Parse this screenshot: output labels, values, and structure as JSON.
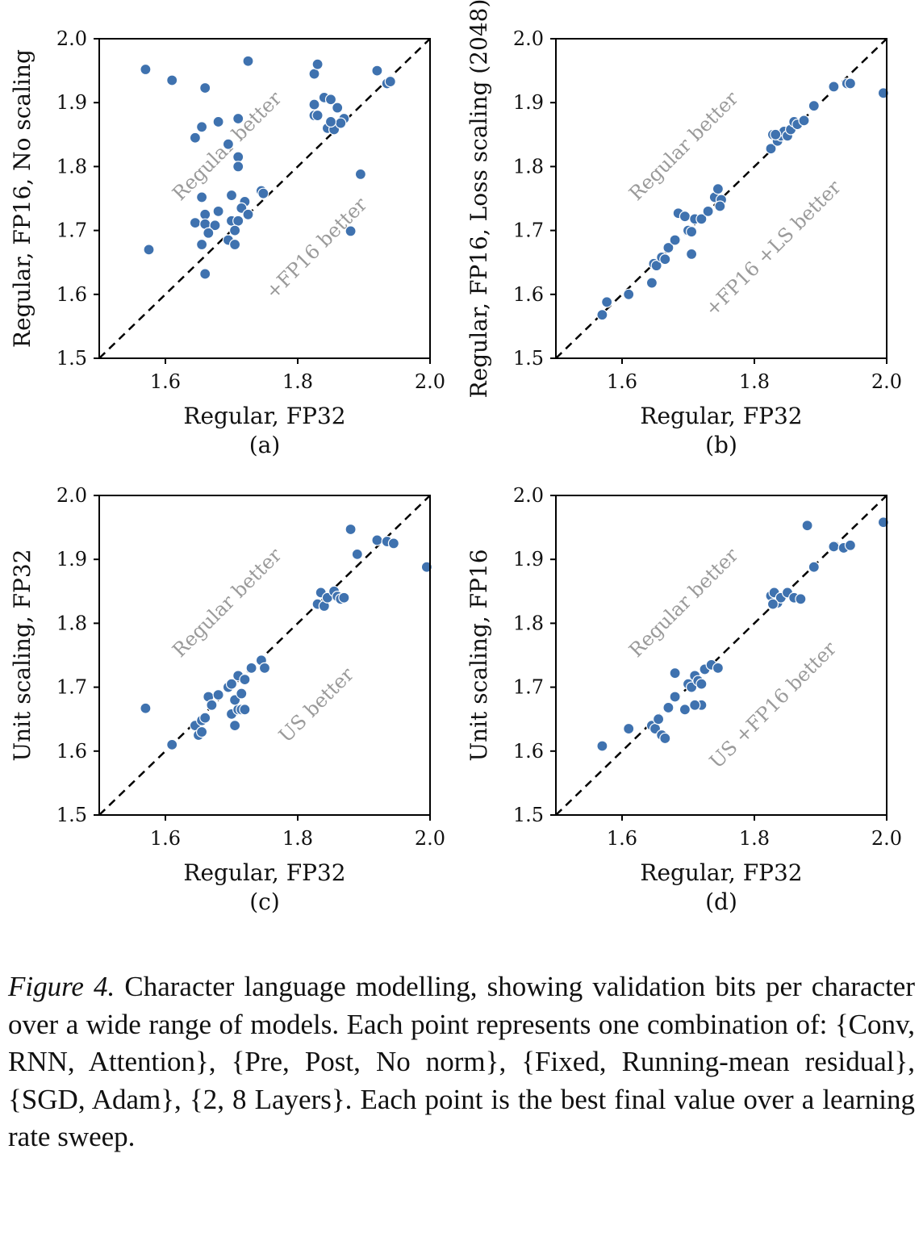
{
  "caption": {
    "label": "Figure 4.",
    "text": "Character language modelling, showing validation bits per character over a wide range of models. Each point represents one combination of: {Conv, RNN, Attention}, {Pre, Post, No norm}, {Fixed, Running-mean residual}, {SGD, Adam}, {2, 8 Layers}. Each point is the best final value over a learning rate sweep."
  },
  "style": {
    "point_color": "#3f72af",
    "point_edge": "#ffffff",
    "annotation_color": "#9a9a9a",
    "diagonal_color": "#000000"
  },
  "chart_data": [
    {
      "type": "scatter",
      "panel_label": "(a)",
      "xlabel": "Regular, FP32",
      "ylabel": "Regular, FP16, No scaling",
      "xlim": [
        1.5,
        2.0
      ],
      "ylim": [
        1.5,
        2.0
      ],
      "xticks": [
        "1.6",
        "1.8",
        "2.0"
      ],
      "yticks": [
        "1.5",
        "1.6",
        "1.7",
        "1.8",
        "1.9",
        "2.0"
      ],
      "annotations": [
        "Regular better",
        "+FP16 better"
      ],
      "reference_line": "y = x",
      "points": [
        [
          1.57,
          1.952
        ],
        [
          1.61,
          1.935
        ],
        [
          1.66,
          1.923
        ],
        [
          1.725,
          1.965
        ],
        [
          1.655,
          1.862
        ],
        [
          1.645,
          1.845
        ],
        [
          1.68,
          1.87
        ],
        [
          1.71,
          1.875
        ],
        [
          1.695,
          1.835
        ],
        [
          1.71,
          1.815
        ],
        [
          1.71,
          1.8
        ],
        [
          1.655,
          1.752
        ],
        [
          1.7,
          1.755
        ],
        [
          1.72,
          1.745
        ],
        [
          1.66,
          1.725
        ],
        [
          1.68,
          1.73
        ],
        [
          1.645,
          1.712
        ],
        [
          1.66,
          1.71
        ],
        [
          1.675,
          1.708
        ],
        [
          1.7,
          1.715
        ],
        [
          1.71,
          1.715
        ],
        [
          1.715,
          1.735
        ],
        [
          1.725,
          1.725
        ],
        [
          1.705,
          1.7
        ],
        [
          1.665,
          1.696
        ],
        [
          1.695,
          1.685
        ],
        [
          1.705,
          1.678
        ],
        [
          1.655,
          1.678
        ],
        [
          1.575,
          1.67
        ],
        [
          1.66,
          1.632
        ],
        [
          1.745,
          1.762
        ],
        [
          1.748,
          1.758
        ],
        [
          1.825,
          1.945
        ],
        [
          1.83,
          1.96
        ],
        [
          1.92,
          1.95
        ],
        [
          1.935,
          1.93
        ],
        [
          1.94,
          1.933
        ],
        [
          1.825,
          1.897
        ],
        [
          1.84,
          1.908
        ],
        [
          1.85,
          1.905
        ],
        [
          1.86,
          1.892
        ],
        [
          1.825,
          1.88
        ],
        [
          1.83,
          1.88
        ],
        [
          1.845,
          1.86
        ],
        [
          1.855,
          1.858
        ],
        [
          1.87,
          1.875
        ],
        [
          1.865,
          1.868
        ],
        [
          1.85,
          1.87
        ],
        [
          1.895,
          1.788
        ],
        [
          1.88,
          1.699
        ]
      ]
    },
    {
      "type": "scatter",
      "panel_label": "(b)",
      "xlabel": "Regular, FP32",
      "ylabel": "Regular, FP16, Loss scaling (2048)",
      "xlim": [
        1.5,
        2.0
      ],
      "ylim": [
        1.5,
        2.0
      ],
      "xticks": [
        "1.6",
        "1.8",
        "2.0"
      ],
      "yticks": [
        "1.5",
        "1.6",
        "1.7",
        "1.8",
        "1.9",
        "2.0"
      ],
      "annotations": [
        "Regular better",
        "+FP16 +LS better"
      ],
      "reference_line": "y = x",
      "points": [
        [
          1.57,
          1.568
        ],
        [
          1.577,
          1.588
        ],
        [
          1.61,
          1.6
        ],
        [
          1.645,
          1.618
        ],
        [
          1.648,
          1.648
        ],
        [
          1.652,
          1.645
        ],
        [
          1.66,
          1.658
        ],
        [
          1.665,
          1.655
        ],
        [
          1.67,
          1.673
        ],
        [
          1.68,
          1.685
        ],
        [
          1.685,
          1.727
        ],
        [
          1.695,
          1.722
        ],
        [
          1.7,
          1.7
        ],
        [
          1.705,
          1.698
        ],
        [
          1.71,
          1.718
        ],
        [
          1.705,
          1.663
        ],
        [
          1.72,
          1.718
        ],
        [
          1.73,
          1.73
        ],
        [
          1.74,
          1.752
        ],
        [
          1.745,
          1.765
        ],
        [
          1.75,
          1.748
        ],
        [
          1.748,
          1.738
        ],
        [
          1.825,
          1.828
        ],
        [
          1.828,
          1.85
        ],
        [
          1.835,
          1.84
        ],
        [
          1.84,
          1.848
        ],
        [
          1.845,
          1.855
        ],
        [
          1.85,
          1.848
        ],
        [
          1.855,
          1.858
        ],
        [
          1.86,
          1.87
        ],
        [
          1.865,
          1.866
        ],
        [
          1.875,
          1.872
        ],
        [
          1.89,
          1.895
        ],
        [
          1.92,
          1.925
        ],
        [
          1.94,
          1.93
        ],
        [
          1.945,
          1.93
        ],
        [
          1.995,
          1.915
        ],
        [
          1.832,
          1.85
        ]
      ]
    },
    {
      "type": "scatter",
      "panel_label": "(c)",
      "xlabel": "Regular, FP32",
      "ylabel": "Unit scaling, FP32",
      "xlim": [
        1.5,
        2.0
      ],
      "ylim": [
        1.5,
        2.0
      ],
      "xticks": [
        "1.6",
        "1.8",
        "2.0"
      ],
      "yticks": [
        "1.5",
        "1.6",
        "1.7",
        "1.8",
        "1.9",
        "2.0"
      ],
      "annotations": [
        "Regular better",
        "US better"
      ],
      "reference_line": "y = x",
      "points": [
        [
          1.57,
          1.667
        ],
        [
          1.61,
          1.61
        ],
        [
          1.645,
          1.64
        ],
        [
          1.65,
          1.625
        ],
        [
          1.655,
          1.63
        ],
        [
          1.655,
          1.648
        ],
        [
          1.66,
          1.652
        ],
        [
          1.665,
          1.685
        ],
        [
          1.67,
          1.672
        ],
        [
          1.68,
          1.688
        ],
        [
          1.695,
          1.7
        ],
        [
          1.7,
          1.705
        ],
        [
          1.7,
          1.658
        ],
        [
          1.705,
          1.64
        ],
        [
          1.71,
          1.665
        ],
        [
          1.715,
          1.665
        ],
        [
          1.72,
          1.665
        ],
        [
          1.71,
          1.718
        ],
        [
          1.72,
          1.712
        ],
        [
          1.73,
          1.73
        ],
        [
          1.745,
          1.742
        ],
        [
          1.75,
          1.73
        ],
        [
          1.83,
          1.83
        ],
        [
          1.835,
          1.848
        ],
        [
          1.84,
          1.827
        ],
        [
          1.845,
          1.84
        ],
        [
          1.855,
          1.85
        ],
        [
          1.86,
          1.842
        ],
        [
          1.865,
          1.838
        ],
        [
          1.87,
          1.84
        ],
        [
          1.88,
          1.947
        ],
        [
          1.89,
          1.908
        ],
        [
          1.92,
          1.93
        ],
        [
          1.935,
          1.928
        ],
        [
          1.945,
          1.925
        ],
        [
          1.995,
          1.888
        ],
        [
          1.705,
          1.68
        ],
        [
          1.715,
          1.69
        ]
      ]
    },
    {
      "type": "scatter",
      "panel_label": "(d)",
      "xlabel": "Regular, FP32",
      "ylabel": "Unit scaling, FP16",
      "xlim": [
        1.5,
        2.0
      ],
      "ylim": [
        1.5,
        2.0
      ],
      "xticks": [
        "1.6",
        "1.8",
        "2.0"
      ],
      "yticks": [
        "1.5",
        "1.6",
        "1.7",
        "1.8",
        "1.9",
        "2.0"
      ],
      "annotations": [
        "Regular better",
        "US +FP16 better"
      ],
      "reference_line": "y = x",
      "points": [
        [
          1.57,
          1.608
        ],
        [
          1.61,
          1.635
        ],
        [
          1.645,
          1.64
        ],
        [
          1.65,
          1.635
        ],
        [
          1.655,
          1.65
        ],
        [
          1.66,
          1.625
        ],
        [
          1.665,
          1.62
        ],
        [
          1.67,
          1.668
        ],
        [
          1.68,
          1.685
        ],
        [
          1.68,
          1.722
        ],
        [
          1.695,
          1.665
        ],
        [
          1.7,
          1.705
        ],
        [
          1.705,
          1.7
        ],
        [
          1.71,
          1.718
        ],
        [
          1.715,
          1.71
        ],
        [
          1.72,
          1.705
        ],
        [
          1.72,
          1.672
        ],
        [
          1.725,
          1.728
        ],
        [
          1.735,
          1.735
        ],
        [
          1.745,
          1.73
        ],
        [
          1.71,
          1.672
        ],
        [
          1.825,
          1.843
        ],
        [
          1.83,
          1.848
        ],
        [
          1.835,
          1.832
        ],
        [
          1.84,
          1.84
        ],
        [
          1.85,
          1.848
        ],
        [
          1.86,
          1.84
        ],
        [
          1.87,
          1.838
        ],
        [
          1.88,
          1.953
        ],
        [
          1.89,
          1.888
        ],
        [
          1.92,
          1.92
        ],
        [
          1.935,
          1.918
        ],
        [
          1.945,
          1.922
        ],
        [
          1.995,
          1.958
        ],
        [
          1.828,
          1.83
        ]
      ]
    }
  ]
}
